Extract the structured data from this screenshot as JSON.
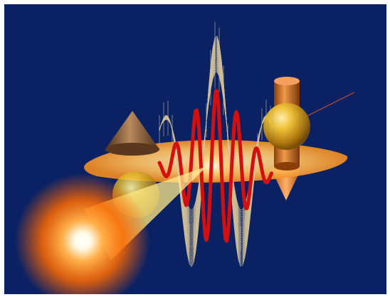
{
  "scene": {
    "background_color": "#0a2264",
    "wave_envelope_color": "#d8c69a",
    "wave_pulse_color": "#d50f0f",
    "disk_color": "#ffb347",
    "cone_color": "#7a5230",
    "cylinder_color": "#d0701e",
    "sphere_color": "#e8b31c",
    "glow_color": "#ff7a10",
    "beam_color": "#f2e040",
    "objects": [
      "glowing-light-source",
      "light-beam",
      "wave-envelope-mesh",
      "red-wave-pulse",
      "orange-disk",
      "brown-cone",
      "yellow-sphere-left",
      "yellow-sphere-right",
      "orange-cylinder",
      "orange-cone-bottom",
      "thin-red-line"
    ]
  }
}
